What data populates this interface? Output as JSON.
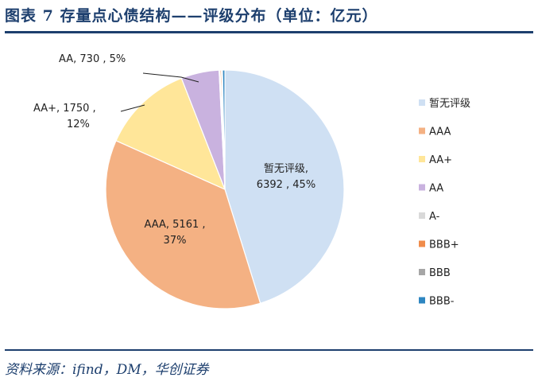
{
  "figure_title": "图表 7  存量点心债结构——评级分布（单位：亿元）",
  "source": "资料来源：ifind，DM，华创证券",
  "chart_data": {
    "type": "pie",
    "title": "",
    "legend_position": "right",
    "slices": [
      {
        "name": "暂无评级",
        "value": 6392,
        "percent_label": "45%",
        "color": "#cfe0f3",
        "label_lines": [
          "暂无评级,",
          "6392 , 45%"
        ]
      },
      {
        "name": "AAA",
        "value": 5161,
        "percent_label": "37%",
        "color": "#f4b183",
        "label_lines": [
          "AAA, 5161 ,",
          "37%"
        ]
      },
      {
        "name": "AA+",
        "value": 1750,
        "percent_label": "12%",
        "color": "#ffe699",
        "label_lines": [
          "AA+, 1750 ,",
          "12%"
        ]
      },
      {
        "name": "AA",
        "value": 730,
        "percent_label": "5%",
        "color": "#c9b2df",
        "label_lines": [
          "AA, 730 , 5%"
        ]
      },
      {
        "name": "A-",
        "value": 20,
        "percent_label": "",
        "color": "#d9d9d9",
        "label_lines": []
      },
      {
        "name": "BBB+",
        "value": 25,
        "percent_label": "",
        "color": "#f08c4b",
        "label_lines": []
      },
      {
        "name": "BBB",
        "value": 20,
        "percent_label": "",
        "color": "#a6a6a6",
        "label_lines": []
      },
      {
        "name": "BBB-",
        "value": 45,
        "percent_label": "",
        "color": "#2e86c1",
        "label_lines": []
      }
    ]
  }
}
